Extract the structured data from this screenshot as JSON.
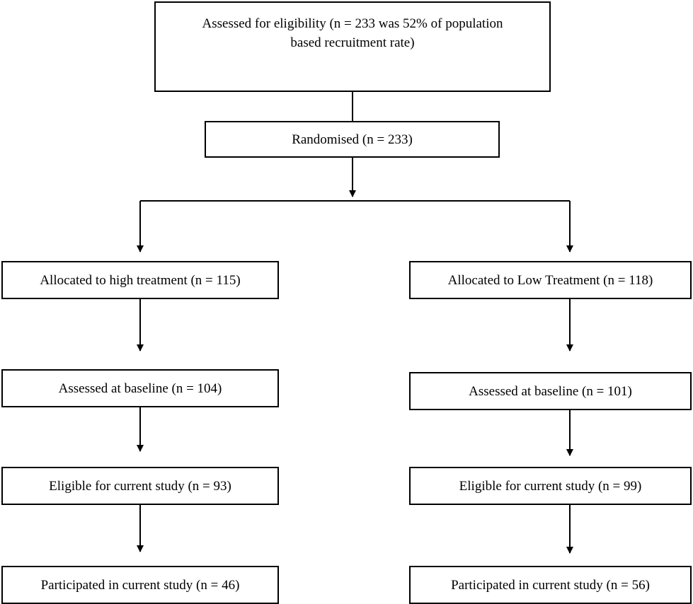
{
  "flowchart": {
    "assessed_eligibility": "Assessed for eligibility (n = 233 was 52% of population based recruitment rate)",
    "randomised": "Randomised (n = 233)",
    "left_arm": {
      "allocated": "Allocated to high treatment (n = 115)",
      "baseline": "Assessed at baseline (n = 104)",
      "eligible": "Eligible for current study (n = 93)",
      "participated": "Participated in current study (n = 46)"
    },
    "right_arm": {
      "allocated": "Allocated to Low Treatment (n = 118)",
      "baseline": "Assessed at baseline (n = 101)",
      "eligible": "Eligible for current study (n = 99)",
      "participated": "Participated in current study (n = 56)"
    }
  }
}
